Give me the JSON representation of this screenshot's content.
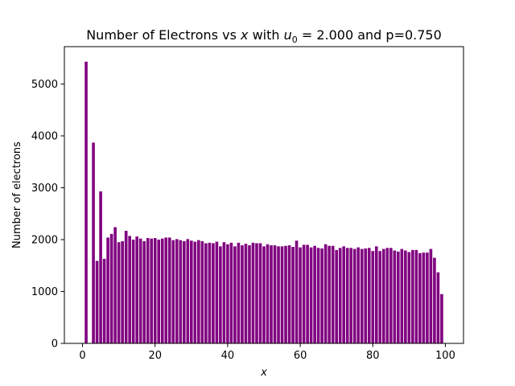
{
  "chart_data": {
    "type": "bar",
    "title": {
      "prefix": "Number of Electrons vs ",
      "x_symbol": "x",
      "middle": " with ",
      "u_symbol": "u",
      "u_subscript": "0",
      "u_equals": " = 2.000",
      "suffix": " and p=0.750"
    },
    "xlabel": "x",
    "ylabel": "Number of electrons",
    "xlim": [
      -5,
      105
    ],
    "ylim": [
      0,
      5720
    ],
    "xticks": [
      0,
      20,
      40,
      60,
      80,
      100
    ],
    "yticks": [
      0,
      1000,
      2000,
      3000,
      4000,
      5000
    ],
    "bar_color": "#800080",
    "bar_width": 0.8,
    "grid": false,
    "x": [
      1,
      2,
      3,
      4,
      5,
      6,
      7,
      8,
      9,
      10,
      11,
      12,
      13,
      14,
      15,
      16,
      17,
      18,
      19,
      20,
      21,
      22,
      23,
      24,
      25,
      26,
      27,
      28,
      29,
      30,
      31,
      32,
      33,
      34,
      35,
      36,
      37,
      38,
      39,
      40,
      41,
      42,
      43,
      44,
      45,
      46,
      47,
      48,
      49,
      50,
      51,
      52,
      53,
      54,
      55,
      56,
      57,
      58,
      59,
      60,
      61,
      62,
      63,
      64,
      65,
      66,
      67,
      68,
      69,
      70,
      71,
      72,
      73,
      74,
      75,
      76,
      77,
      78,
      79,
      80,
      81,
      82,
      83,
      84,
      85,
      86,
      87,
      88,
      89,
      90,
      91,
      92,
      93,
      94,
      95,
      96,
      97,
      98,
      99,
      100
    ],
    "values": [
      5430,
      0,
      3870,
      1590,
      2930,
      1630,
      2040,
      2110,
      2240,
      1950,
      1970,
      2170,
      2070,
      2000,
      2060,
      2020,
      1970,
      2030,
      2020,
      2030,
      2000,
      2020,
      2040,
      2040,
      1990,
      2010,
      1990,
      1970,
      2010,
      1980,
      1960,
      1990,
      1970,
      1930,
      1940,
      1930,
      1960,
      1870,
      1950,
      1910,
      1940,
      1870,
      1940,
      1890,
      1920,
      1890,
      1940,
      1930,
      1930,
      1870,
      1910,
      1890,
      1890,
      1870,
      1870,
      1880,
      1890,
      1860,
      1980,
      1850,
      1900,
      1900,
      1850,
      1880,
      1840,
      1830,
      1910,
      1880,
      1880,
      1800,
      1840,
      1870,
      1840,
      1840,
      1820,
      1850,
      1820,
      1830,
      1840,
      1780,
      1870,
      1780,
      1820,
      1840,
      1840,
      1790,
      1770,
      1820,
      1790,
      1760,
      1800,
      1800,
      1740,
      1750,
      1750,
      1820,
      1650,
      1370,
      950,
      0
    ]
  }
}
